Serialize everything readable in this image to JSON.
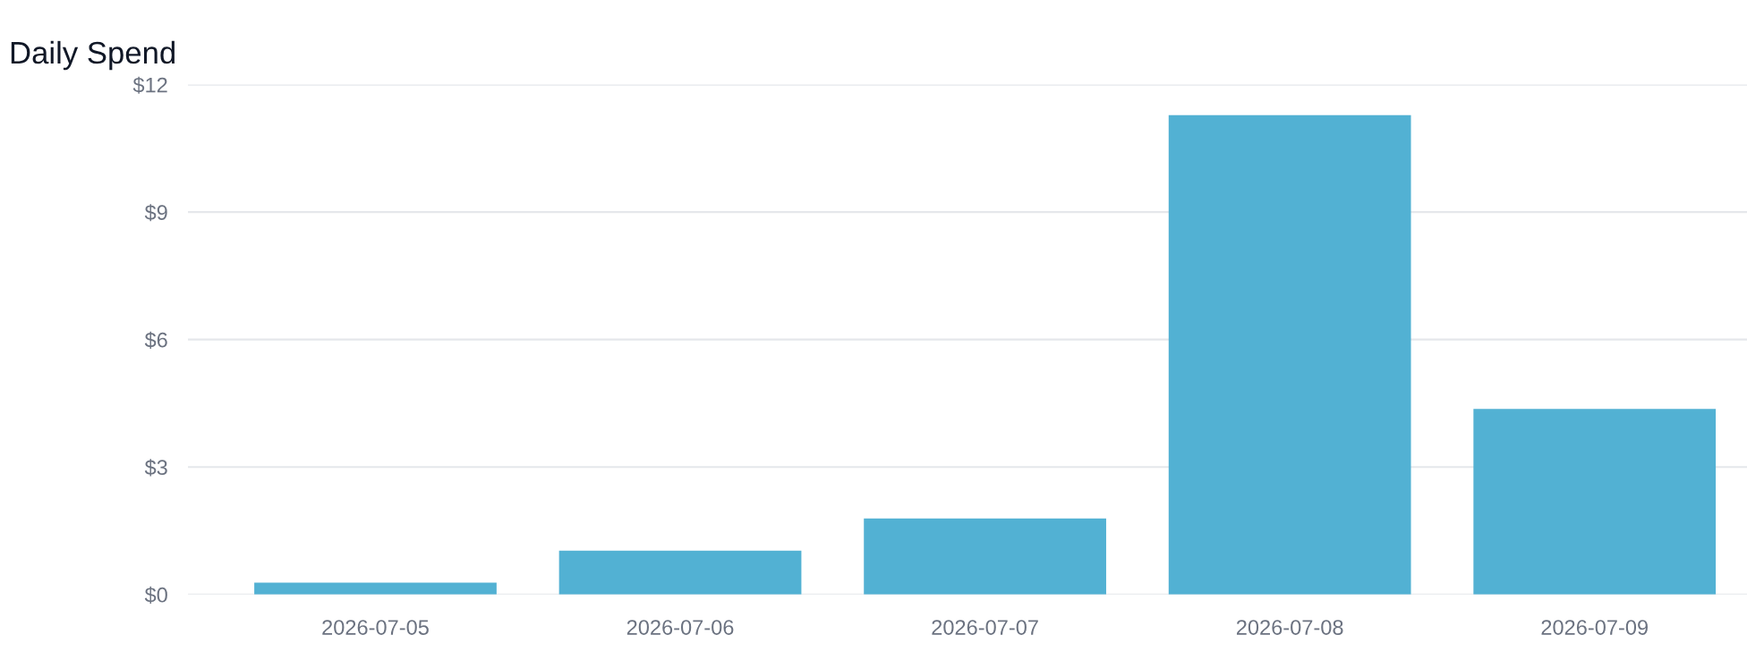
{
  "chart_data": {
    "type": "bar",
    "title": "Daily Spend",
    "categories": [
      "2026-07-05",
      "2026-07-06",
      "2026-07-07",
      "2026-07-08",
      "2026-07-09"
    ],
    "values": [
      0.28,
      1.03,
      1.79,
      11.28,
      4.37
    ],
    "color": "#52b1d3",
    "ylim": [
      0,
      12
    ],
    "yticks": [
      {
        "value": 0,
        "label": "$0"
      },
      {
        "value": 3,
        "label": "$3"
      },
      {
        "value": 6,
        "label": "$6"
      },
      {
        "value": 9,
        "label": "$9"
      },
      {
        "value": 12,
        "label": "$12"
      }
    ],
    "grid": "y"
  }
}
